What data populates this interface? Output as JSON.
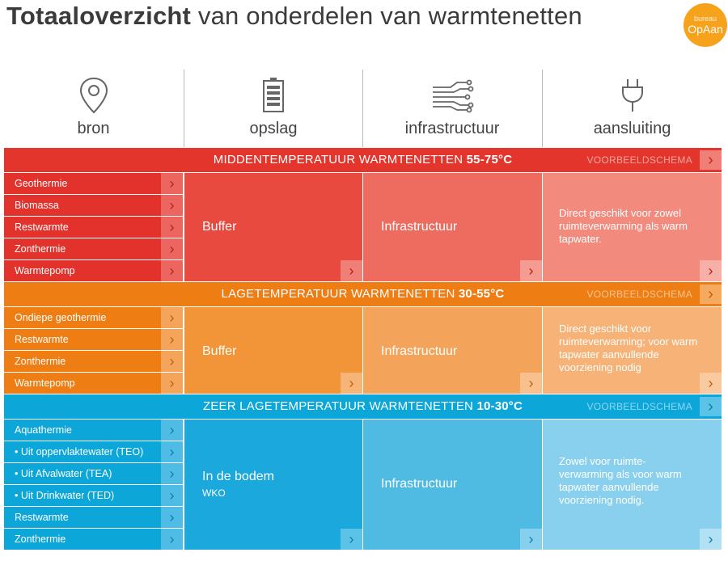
{
  "title": {
    "bold": "Totaaloverzicht",
    "rest": " van onderdelen van warmtenetten"
  },
  "logo": {
    "top": "bureau",
    "bottom": "OpAan"
  },
  "columns": [
    "bron",
    "opslag",
    "infrastructuur",
    "aansluiting"
  ],
  "bands": [
    {
      "title": "MIDDENTEMPERATUUR WARMTENETTEN",
      "temp": "55-75°C",
      "voorbeeld": "VOORBEELDSCHEMA"
    },
    {
      "title": "LAGETEMPERATUUR WARMTENETTEN",
      "temp": "30-55°C",
      "voorbeeld": "VOORBEELDSCHEMA"
    },
    {
      "title": "ZEER LAGETEMPERATUUR WARMTENETTEN",
      "temp": "10-30°C",
      "voorbeeld": "VOORBEELDSCHEMA"
    }
  ],
  "sections": [
    {
      "sources": [
        "Geothermie",
        "Biomassa",
        "Restwarmte",
        "Zonthermie",
        "Warmtepomp"
      ],
      "opslag": "Buffer",
      "infra": "Infrastructuur",
      "aansluiting": "Direct geschikt voor zowel ruimteverwarming als warm tapwater."
    },
    {
      "sources": [
        "Ondiepe geothermie",
        "Restwarmte",
        "Zonthermie",
        "Warmtepomp"
      ],
      "opslag": "Buffer",
      "infra": "Infrastructuur",
      "aansluiting": "Direct geschikt voor ruimteverwarming; voor warm tapwater aanvullende voorziening nodig"
    },
    {
      "sources": [
        "Aquathermie",
        "• Uit oppervlaktewater (TEO)",
        "• Uit Afvalwater (TEA)",
        "• Uit Drinkwater (TED)",
        "Restwarmte",
        "Zonthermie"
      ],
      "opslag": "In de bodem",
      "opslag_sub": "WKO",
      "infra": "Infrastructuur",
      "aansluiting": "Zowel voor ruimte-verwarming als voor warm tapwater aanvullende voorziening nodig."
    }
  ],
  "icons": {
    "bron": "location-pin-icon",
    "opslag": "battery-icon",
    "infra": "circuit-icon",
    "aansluiting": "plug-icon",
    "arrow": "chevron-right-icon"
  },
  "colors": {
    "red_band": "#e3352c",
    "red_src": "#e2322b",
    "red_c2": "#e94a3f",
    "red_c3": "#ee6c5f",
    "red_c4": "#f28a7e",
    "orange_band": "#ee7d13",
    "orange_src": "#ee7d13",
    "orange_c2": "#f29539",
    "orange_c3": "#f4a35a",
    "orange_c4": "#f6b277",
    "blue_band": "#0da6d9",
    "blue_src": "#0da6d9",
    "blue_c2": "#1aa8dd",
    "blue_c3": "#4fbbe3",
    "blue_c4": "#88d0ee"
  }
}
